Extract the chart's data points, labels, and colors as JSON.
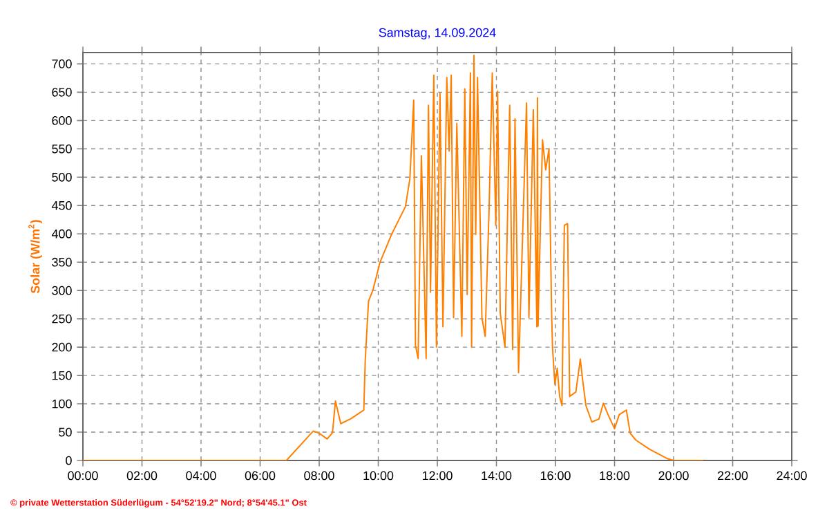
{
  "chart_data": {
    "type": "line",
    "title": "Samstag, 14.09.2024",
    "ylabel": "Solar (W/m$^{2}$)",
    "annotations": [
      "© private Wetterstation Süderlügum - 54°52'19.2\" Nord; 8°54'45.1\" Ost"
    ],
    "x": [
      0,
      6.89,
      7.8,
      8.0,
      8.27,
      8.45,
      8.55,
      8.73,
      9.05,
      9.51,
      9.56,
      9.67,
      9.82,
      10.06,
      10.45,
      10.92,
      11.07,
      11.2,
      11.26,
      11.35,
      11.46,
      11.62,
      11.7,
      11.77,
      11.88,
      11.97,
      12.09,
      12.19,
      12.32,
      12.4,
      12.47,
      12.55,
      12.66,
      12.83,
      12.93,
      13.01,
      13.12,
      13.16,
      13.24,
      13.3,
      13.36,
      13.51,
      13.62,
      13.75,
      13.86,
      13.98,
      14.04,
      14.13,
      14.29,
      14.45,
      14.55,
      14.63,
      14.75,
      15.02,
      15.1,
      15.25,
      15.37,
      15.39,
      15.41,
      15.56,
      15.67,
      15.78,
      15.87,
      15.9,
      15.98,
      16.06,
      16.14,
      16.22,
      16.3,
      16.41,
      16.48,
      16.69,
      16.84,
      16.92,
      17.03,
      17.23,
      17.47,
      17.62,
      17.78,
      18.0,
      18.16,
      18.4,
      18.53,
      18.72,
      19.18,
      19.8,
      20.0,
      21.0
    ],
    "series": [
      {
        "color": "#ff8000",
        "values": [
          0,
          0,
          52,
          48,
          38,
          49,
          105,
          65,
          73,
          89,
          178,
          281,
          301,
          350,
          399,
          448,
          497,
          636,
          203,
          180,
          538,
          180,
          627,
          297,
          680,
          200,
          648,
          236,
          676,
          546,
          680,
          252,
          595,
          219,
          656,
          293,
          684,
          200,
          715,
          399,
          676,
          252,
          219,
          440,
          684,
          415,
          652,
          260,
          200,
          627,
          196,
          603,
          155,
          631,
          252,
          619,
          236,
          640,
          237,
          566,
          513,
          550,
          260,
          199,
          134,
          163,
          113,
          97,
          415,
          418,
          113,
          121,
          179,
          142,
          97,
          68,
          73,
          101,
          81,
          56,
          81,
          89,
          48,
          36,
          20,
          3,
          0,
          0
        ]
      }
    ],
    "xlim": [
      0,
      24
    ],
    "ylim": [
      0,
      720
    ],
    "xticks": [
      {
        "value": 0,
        "label": "00:00"
      },
      {
        "value": 2,
        "label": "02:00"
      },
      {
        "value": 4,
        "label": "04:00"
      },
      {
        "value": 6,
        "label": "06:00"
      },
      {
        "value": 8,
        "label": "08:00"
      },
      {
        "value": 10,
        "label": "10:00"
      },
      {
        "value": 12,
        "label": "12:00"
      },
      {
        "value": 14,
        "label": "14:00"
      },
      {
        "value": 16,
        "label": "16:00"
      },
      {
        "value": 18,
        "label": "18:00"
      },
      {
        "value": 20,
        "label": "20:00"
      },
      {
        "value": 22,
        "label": "22:00"
      },
      {
        "value": 24,
        "label": "24:00"
      }
    ],
    "yticks": [
      0,
      50,
      100,
      150,
      200,
      250,
      300,
      350,
      400,
      450,
      500,
      550,
      600,
      650,
      700
    ],
    "grid": true,
    "line_style": "solid",
    "marker": "none"
  }
}
